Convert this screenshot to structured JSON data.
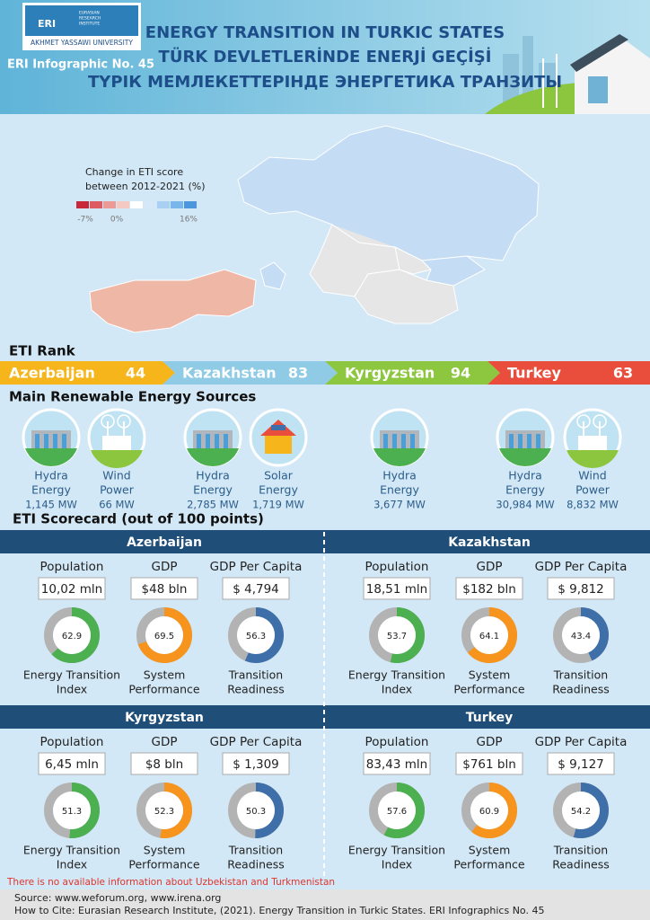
{
  "header": {
    "logo_abbr": "ERI",
    "logo_lines": [
      "EURASIAN",
      "RESEARCH",
      "INSTITUTE"
    ],
    "university": "AKHMET YASSAWI UNIVERSITY",
    "issue": "ERI Infographic No. 45",
    "titles": [
      "ENERGY TRANSITION IN TURKIC STATES",
      "TÜRK DEVLETLERİNDE ENERJİ GEÇİŞİ",
      "ТҮРІК МЕМЛЕКЕТТЕРІНДЕ ЭНЕРГЕТИКА ТРАНЗИТЫ"
    ]
  },
  "map": {
    "legend_title": [
      "Change in ETI score",
      "between 2012-2021 (%)"
    ],
    "legend_colors": [
      "#c8283a",
      "#dd5b63",
      "#ec9a96",
      "#f4c9c2",
      "#ffffff",
      "#d6e8f8",
      "#a9d0f2",
      "#7bb6ea",
      "#4a97dd"
    ],
    "legend_ticks": [
      {
        "value": -7,
        "label": "-7%"
      },
      {
        "value": 0,
        "label": "0%"
      },
      {
        "value": 16,
        "label": "16%"
      }
    ]
  },
  "eti_rank": {
    "title": "ETI Rank",
    "items": [
      {
        "country": "Azerbaijan",
        "rank": 44,
        "color": "#f5b51b"
      },
      {
        "country": "Kazakhstan",
        "rank": 83,
        "color": "#8fcbe5"
      },
      {
        "country": "Kyrgyzstan",
        "rank": 94,
        "color": "#8dc63f"
      },
      {
        "country": "Turkey",
        "rank": 63,
        "color": "#e94e3c"
      }
    ]
  },
  "renewables": {
    "title": "Main Renewable Energy Sources",
    "items": [
      {
        "name": [
          "Hydra",
          "Energy"
        ],
        "capacity": "1,145 MW"
      },
      {
        "name": [
          "Wind",
          "Power"
        ],
        "capacity": "66 MW"
      },
      {
        "name": [
          "Hydra",
          "Energy"
        ],
        "capacity": "2,785 MW"
      },
      {
        "name": [
          "Solar",
          "Energy"
        ],
        "capacity": "1,719 MW"
      },
      {
        "name": [
          "Hydra",
          "Energy"
        ],
        "capacity": "3,677 MW"
      },
      {
        "name": [
          "Hydra",
          "Energy"
        ],
        "capacity": "30,984 MW"
      },
      {
        "name": [
          "Wind",
          "Power"
        ],
        "capacity": "8,832 MW"
      }
    ]
  },
  "scorecard": {
    "title": "ETI Scorecard (out of 100 points)",
    "labels": [
      "Population",
      "GDP",
      "GDP Per Capita"
    ],
    "index_labels": [
      [
        "Energy Transition",
        "Index"
      ],
      [
        "System",
        "Performance"
      ],
      [
        "Transition",
        "Readiness"
      ]
    ],
    "index_colors": [
      "#4caf50",
      "#f7941d",
      "#3e6fa8"
    ],
    "countries": [
      {
        "name": "Azerbaijan",
        "stats": [
          "10,02 mln",
          "$48 bln",
          "$ 4,794"
        ],
        "scores": [
          62.9,
          69.5,
          56.3
        ]
      },
      {
        "name": "Kazakhstan",
        "stats": [
          "18,51 mln",
          "$182 bln",
          "$ 9,812"
        ],
        "scores": [
          53.7,
          64.1,
          43.4
        ]
      },
      {
        "name": "Kyrgyzstan",
        "stats": [
          "6,45 mln",
          "$8 bln",
          "$ 1,309"
        ],
        "scores": [
          51.3,
          52.3,
          50.3
        ]
      },
      {
        "name": "Turkey",
        "stats": [
          "83,43 mln",
          "$761 bln",
          "$ 9,127"
        ],
        "scores": [
          57.6,
          60.9,
          54.2
        ]
      }
    ]
  },
  "note": "There is no available information about Uzbekistan and Turkmenistan",
  "footer": {
    "source": "Source: www.weforum.org, www.irena.org",
    "citation": "How to Cite: Eurasian Research Institute, (2021). Energy Transition in Turkic States. ERI Infographics No. 45"
  }
}
